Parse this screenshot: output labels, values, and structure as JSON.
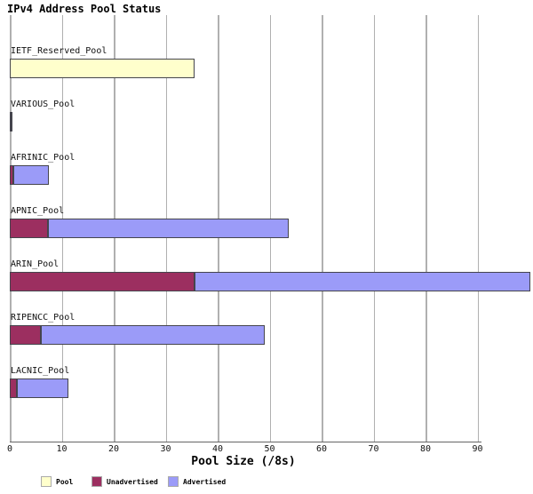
{
  "title": "IPv4 Address Pool Status",
  "chart_data": {
    "type": "bar",
    "orientation": "horizontal",
    "stacked": true,
    "title": "IPv4 Address Pool Status",
    "xlabel": "Pool Size (/8s)",
    "ylabel": "",
    "xlim": [
      0,
      104
    ],
    "xticks": [
      0,
      10,
      20,
      30,
      40,
      50,
      60,
      70,
      80,
      90
    ],
    "grid": true,
    "legend_position": "bottom",
    "categories": [
      "IETF_Reserved_Pool",
      "VARIOUS_Pool",
      "AFRINIC_Pool",
      "APNIC_Pool",
      "ARIN_Pool",
      "RIPENCC_Pool",
      "LACNIC_Pool"
    ],
    "series": [
      {
        "name": "Pool",
        "color": "#ffffcc",
        "values": [
          35.5,
          0,
          0,
          0,
          0,
          0,
          0
        ]
      },
      {
        "name": "Unadvertised",
        "color": "#9c2f60",
        "values": [
          0,
          0.2,
          0.6,
          7.4,
          35.6,
          5.9,
          1.3
        ]
      },
      {
        "name": "Advertised",
        "color": "#9b9bf8",
        "values": [
          0,
          0.1,
          6.9,
          46.2,
          64.6,
          43.2,
          10.0
        ]
      }
    ],
    "totals": [
      35.5,
      0.3,
      7.5,
      53.6,
      100.2,
      49.1,
      11.3
    ]
  },
  "legend": {
    "items": [
      {
        "label": "Pool",
        "color": "#ffffcc"
      },
      {
        "label": "Unadvertised",
        "color": "#9c2f60"
      },
      {
        "label": "Advertised",
        "color": "#9b9bf8"
      }
    ]
  },
  "colors": {
    "background": "#ffffff",
    "gridline": "#b0b0b0",
    "axis": "#666666",
    "bar_border": "#45454d",
    "text": "#000000"
  }
}
